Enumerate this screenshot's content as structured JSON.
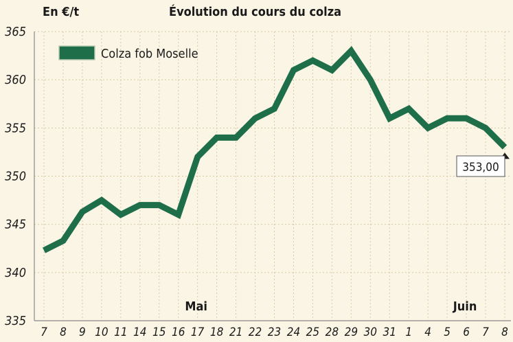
{
  "unit_label": "En €/t",
  "title": "Évolution du cours du colza",
  "colors": {
    "line": "#1e6e4a",
    "background": "#fbf5e6",
    "grid": "#d8c9a4",
    "axis": "#888888"
  },
  "chart_data": {
    "type": "line",
    "title": "Évolution du cours du colza",
    "ylabel": "En €/t",
    "xlabel": "",
    "ylim": [
      335,
      365
    ],
    "yticks": [
      335,
      340,
      345,
      350,
      355,
      360,
      365
    ],
    "grid": true,
    "legend_position": "top-left",
    "categories": [
      "7",
      "8",
      "9",
      "10",
      "11",
      "14",
      "15",
      "16",
      "17",
      "18",
      "21",
      "22",
      "23",
      "24",
      "25",
      "28",
      "29",
      "30",
      "31",
      "1",
      "4",
      "5",
      "6",
      "7",
      "8"
    ],
    "month_labels": [
      {
        "label": "Mai",
        "index": 8
      },
      {
        "label": "Juin",
        "index": 22
      }
    ],
    "series": [
      {
        "name": "Colza fob Moselle",
        "values": [
          342.3,
          343.3,
          346.3,
          347.5,
          346.0,
          347.0,
          347.0,
          346.0,
          352.0,
          354.0,
          354.0,
          356.0,
          357.0,
          361.0,
          362.0,
          361.0,
          363.0,
          360.0,
          356.0,
          357.0,
          355.0,
          356.0,
          356.0,
          355.0,
          353.0
        ]
      }
    ],
    "last_value_label": "353,00"
  }
}
